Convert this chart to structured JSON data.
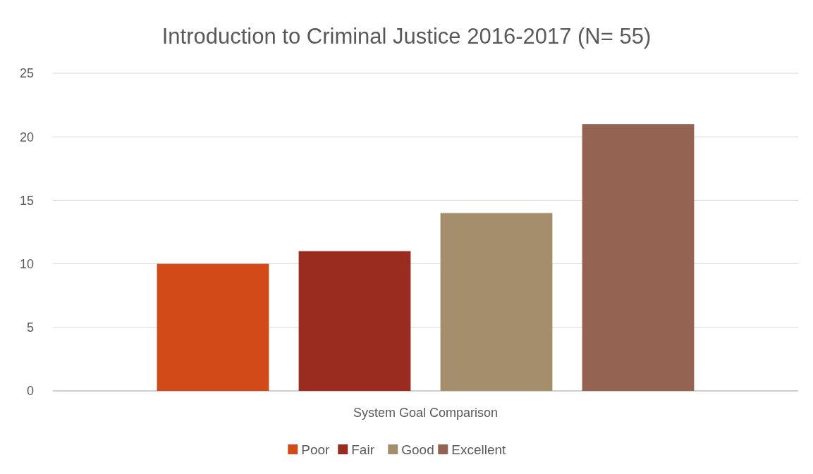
{
  "chart_data": {
    "type": "bar",
    "title": "Introduction to Criminal Justice 2016-2017 (N= 55)",
    "categories": [
      "System Goal Comparison"
    ],
    "series": [
      {
        "name": "Poor",
        "color": "#d24a17",
        "values": [
          10
        ]
      },
      {
        "name": "Fair",
        "color": "#9a2b1f",
        "values": [
          11
        ]
      },
      {
        "name": "Good",
        "color": "#a58e6b",
        "values": [
          14
        ]
      },
      {
        "name": "Excellent",
        "color": "#956352",
        "values": [
          21
        ]
      }
    ],
    "ylim": [
      0,
      25
    ],
    "yticks": [
      0,
      5,
      10,
      15,
      20,
      25
    ],
    "grid": "y",
    "legend": "bottom"
  }
}
